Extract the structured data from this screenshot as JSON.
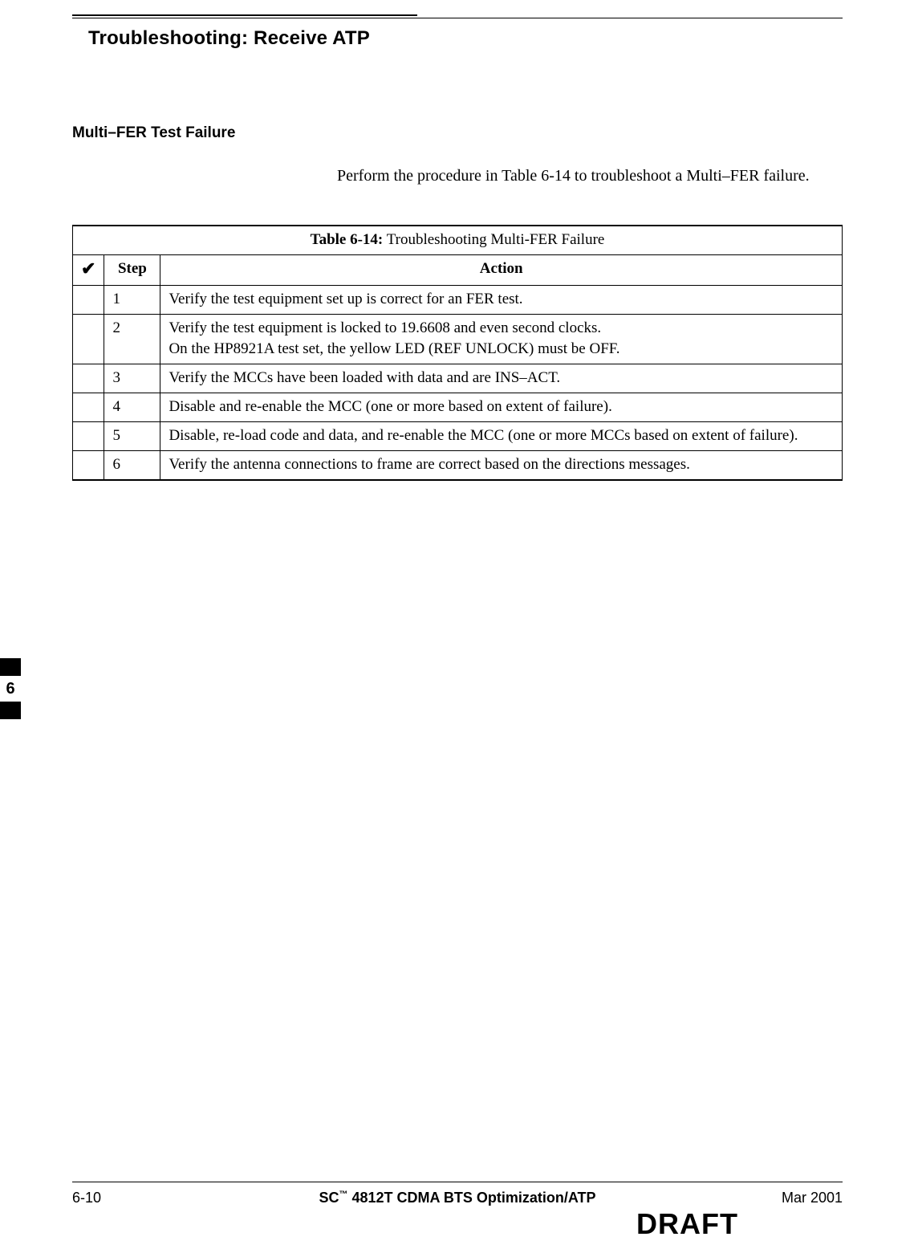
{
  "page_title": "Troubleshooting: Receive ATP",
  "section_heading": "Multi–FER Test Failure",
  "intro_text": "Perform the procedure in Table 6-14 to troubleshoot a Multi–FER failure.",
  "table": {
    "caption_label": "Table 6-14:",
    "caption_text": "Troubleshooting Multi-FER Failure",
    "check_symbol": "✔",
    "headers": {
      "step": "Step",
      "action": "Action"
    },
    "rows": [
      {
        "step": "1",
        "action": [
          "Verify the test equipment set up is correct for an FER test."
        ]
      },
      {
        "step": "2",
        "action": [
          "Verify the test equipment is locked to 19.6608 and even second clocks.",
          "On the HP8921A test set, the yellow LED (REF UNLOCK) must be OFF."
        ]
      },
      {
        "step": "3",
        "action": [
          "Verify the MCCs have been loaded with data and are INS–ACT."
        ]
      },
      {
        "step": "4",
        "action": [
          "Disable and re-enable the MCC (one or more based on extent of failure)."
        ]
      },
      {
        "step": "5",
        "action": [
          "Disable, re-load code and data, and re-enable the MCC (one or more MCCs based on extent of failure)."
        ]
      },
      {
        "step": "6",
        "action": [
          "Verify the antenna connections to frame are correct based on the directions messages."
        ]
      }
    ]
  },
  "side_tab": "6",
  "footer": {
    "left": "6-10",
    "center_prefix": "SC",
    "center_tm": "™",
    "center_rest": "4812T CDMA BTS Optimization/ATP",
    "right": "Mar 2001"
  },
  "draft": "DRAFT"
}
